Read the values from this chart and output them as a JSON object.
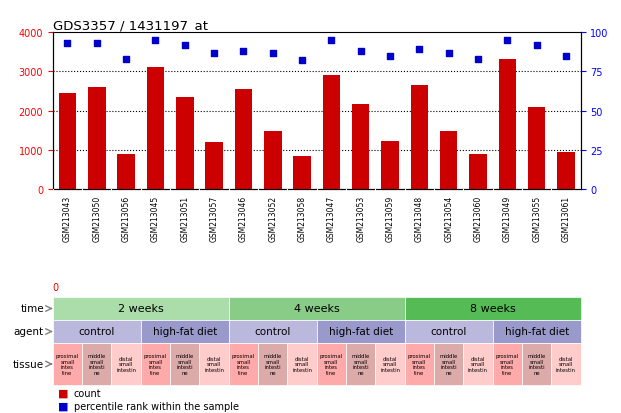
{
  "title": "GDS3357 / 1431197_at",
  "samples": [
    "GSM213043",
    "GSM213050",
    "GSM213056",
    "GSM213045",
    "GSM213051",
    "GSM213057",
    "GSM213046",
    "GSM213052",
    "GSM213058",
    "GSM213047",
    "GSM213053",
    "GSM213059",
    "GSM213048",
    "GSM213054",
    "GSM213060",
    "GSM213049",
    "GSM213055",
    "GSM213061"
  ],
  "counts": [
    2450,
    2600,
    900,
    3100,
    2350,
    1200,
    2550,
    1480,
    850,
    2900,
    2180,
    1220,
    2650,
    1480,
    900,
    3320,
    2080,
    950
  ],
  "percentiles": [
    93,
    93,
    83,
    95,
    92,
    87,
    88,
    87,
    82,
    95,
    88,
    85,
    89,
    87,
    83,
    95,
    92,
    85
  ],
  "ylim_left": [
    0,
    4000
  ],
  "ylim_right": [
    0,
    100
  ],
  "yticks_left": [
    0,
    1000,
    2000,
    3000,
    4000
  ],
  "yticks_right": [
    0,
    25,
    50,
    75,
    100
  ],
  "bar_color": "#cc0000",
  "dot_color": "#0000cc",
  "xlabels_bg": "#cccccc",
  "time_groups": [
    {
      "label": "2 weeks",
      "start": 0,
      "end": 6,
      "color": "#aaddaa"
    },
    {
      "label": "4 weeks",
      "start": 6,
      "end": 12,
      "color": "#88cc88"
    },
    {
      "label": "8 weeks",
      "start": 12,
      "end": 18,
      "color": "#55bb55"
    }
  ],
  "agent_groups": [
    {
      "label": "control",
      "start": 0,
      "end": 3,
      "color": "#bbb8dd"
    },
    {
      "label": "high-fat diet",
      "start": 3,
      "end": 6,
      "color": "#9999cc"
    },
    {
      "label": "control",
      "start": 6,
      "end": 9,
      "color": "#bbb8dd"
    },
    {
      "label": "high-fat diet",
      "start": 9,
      "end": 12,
      "color": "#9999cc"
    },
    {
      "label": "control",
      "start": 12,
      "end": 15,
      "color": "#bbb8dd"
    },
    {
      "label": "high-fat diet",
      "start": 15,
      "end": 18,
      "color": "#9999cc"
    }
  ],
  "tissue_labels": [
    "proximal\nsmall\nintes\ntine",
    "middle\nsmall\nintesti\nne",
    "distal\nsmall\nintestin",
    "proximal\nsmall\nintes\ntine",
    "middle\nsmall\nintesti\nne",
    "distal\nsmall\nintestin",
    "proximal\nsmall\nintes\ntine",
    "middle\nsmall\nintesti\nne",
    "distal\nsmall\nintestin",
    "proximal\nsmall\nintes\ntine",
    "middle\nsmall\nintesti\nne",
    "distal\nsmall\nintestin",
    "proximal\nsmall\nintes\ntine",
    "middle\nsmall\nintesti\nne",
    "distal\nsmall\nintestin",
    "proximal\nsmall\nintes\ntine",
    "middle\nsmall\nintesti\nne",
    "distal\nsmall\nintestin"
  ],
  "tissue_colors": [
    "#ffaaaa",
    "#ddaaaa",
    "#ffcccc",
    "#ffaaaa",
    "#ddaaaa",
    "#ffcccc",
    "#ffaaaa",
    "#ddaaaa",
    "#ffcccc",
    "#ffaaaa",
    "#ddaaaa",
    "#ffcccc",
    "#ffaaaa",
    "#ddaaaa",
    "#ffcccc",
    "#ffaaaa",
    "#ddaaaa",
    "#ffcccc"
  ],
  "legend_count_color": "#cc0000",
  "legend_dot_color": "#0000cc",
  "legend_count_label": "count",
  "legend_percentile_label": "percentile rank within the sample",
  "bg_color": "#ffffff"
}
